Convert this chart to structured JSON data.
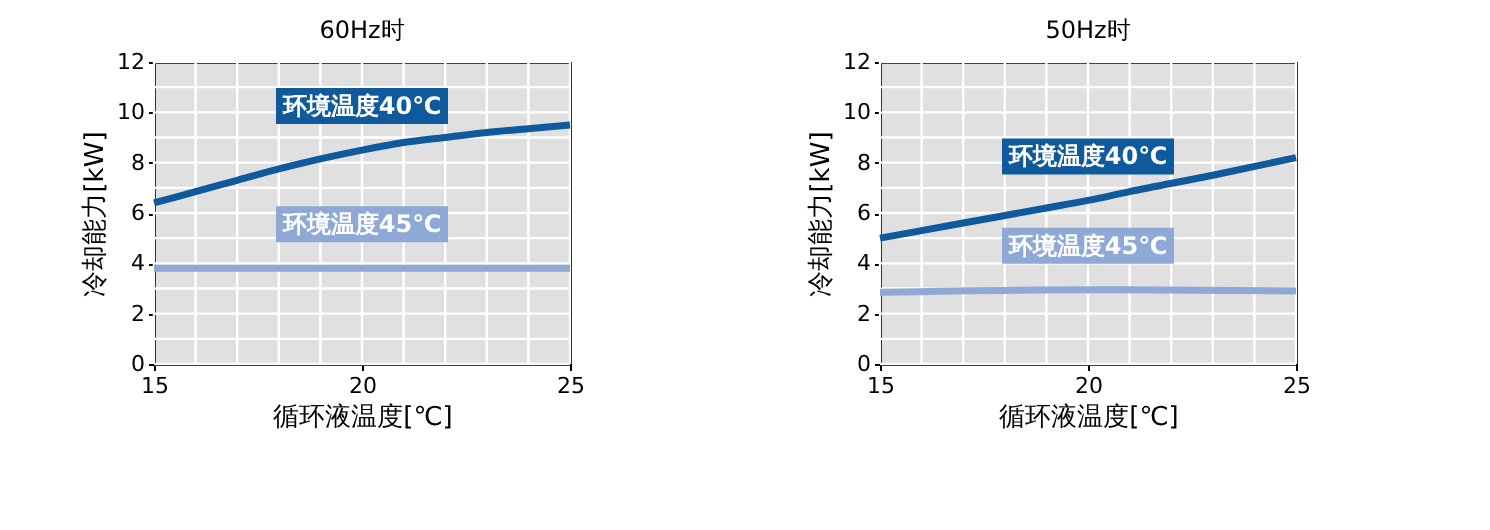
{
  "chart_data": [
    {
      "type": "line",
      "title": "60Hz时",
      "xlabel": "循环液温度[℃]",
      "ylabel": "冷却能力[kW]",
      "xlim": [
        15,
        25
      ],
      "ylim": [
        0,
        12
      ],
      "xticks": [
        15,
        {
          "value": 16,
          "label": null
        },
        {
          "value": 17,
          "label": null
        },
        {
          "value": 18,
          "label": null
        },
        {
          "value": 19,
          "label": null
        },
        20,
        {
          "value": 21,
          "label": null
        },
        {
          "value": 22,
          "label": null
        },
        {
          "value": 23,
          "label": null
        },
        {
          "value": 24,
          "label": null
        },
        25
      ],
      "yticks": [
        0,
        {
          "value": 1,
          "label": null
        },
        2,
        {
          "value": 3,
          "label": null
        },
        4,
        {
          "value": 5,
          "label": null
        },
        6,
        {
          "value": 7,
          "label": null
        },
        8,
        {
          "value": 9,
          "label": null
        },
        10,
        {
          "value": 11,
          "label": null
        },
        12
      ],
      "grid": true,
      "legend": false,
      "series": [
        {
          "name": "环境温度40℃",
          "color": "#0f5a9c",
          "x": [
            15,
            16,
            17,
            18,
            19,
            20,
            21,
            22,
            23,
            24,
            25
          ],
          "values": [
            6.4,
            6.85,
            7.3,
            7.75,
            8.15,
            8.5,
            8.8,
            9.0,
            9.2,
            9.35,
            9.5
          ]
        },
        {
          "name": "环境温度45℃",
          "color": "#8ea9d6",
          "x": [
            15,
            20,
            25
          ],
          "values": [
            3.8,
            3.8,
            3.8
          ]
        }
      ]
    },
    {
      "type": "line",
      "title": "50Hz时",
      "xlabel": "循环液温度[℃]",
      "ylabel": "冷却能力[kW]",
      "xlim": [
        15,
        25
      ],
      "ylim": [
        0,
        12
      ],
      "xticks": [
        15,
        {
          "value": 16,
          "label": null
        },
        {
          "value": 17,
          "label": null
        },
        {
          "value": 18,
          "label": null
        },
        {
          "value": 19,
          "label": null
        },
        20,
        {
          "value": 21,
          "label": null
        },
        {
          "value": 22,
          "label": null
        },
        {
          "value": 23,
          "label": null
        },
        {
          "value": 24,
          "label": null
        },
        25
      ],
      "yticks": [
        0,
        {
          "value": 1,
          "label": null
        },
        2,
        {
          "value": 3,
          "label": null
        },
        4,
        {
          "value": 5,
          "label": null
        },
        6,
        {
          "value": 7,
          "label": null
        },
        8,
        {
          "value": 9,
          "label": null
        },
        10,
        {
          "value": 11,
          "label": null
        },
        12
      ],
      "grid": true,
      "legend": false,
      "series": [
        {
          "name": "环境温度40℃",
          "color": "#0f5a9c",
          "x": [
            15,
            17,
            19,
            20,
            21,
            23,
            25
          ],
          "values": [
            5.0,
            5.6,
            6.2,
            6.5,
            6.85,
            7.5,
            8.2
          ]
        },
        {
          "name": "环境温度45℃",
          "color": "#8ea9d6",
          "x": [
            15,
            20,
            25
          ],
          "values": [
            2.85,
            2.95,
            2.9
          ]
        }
      ]
    }
  ]
}
